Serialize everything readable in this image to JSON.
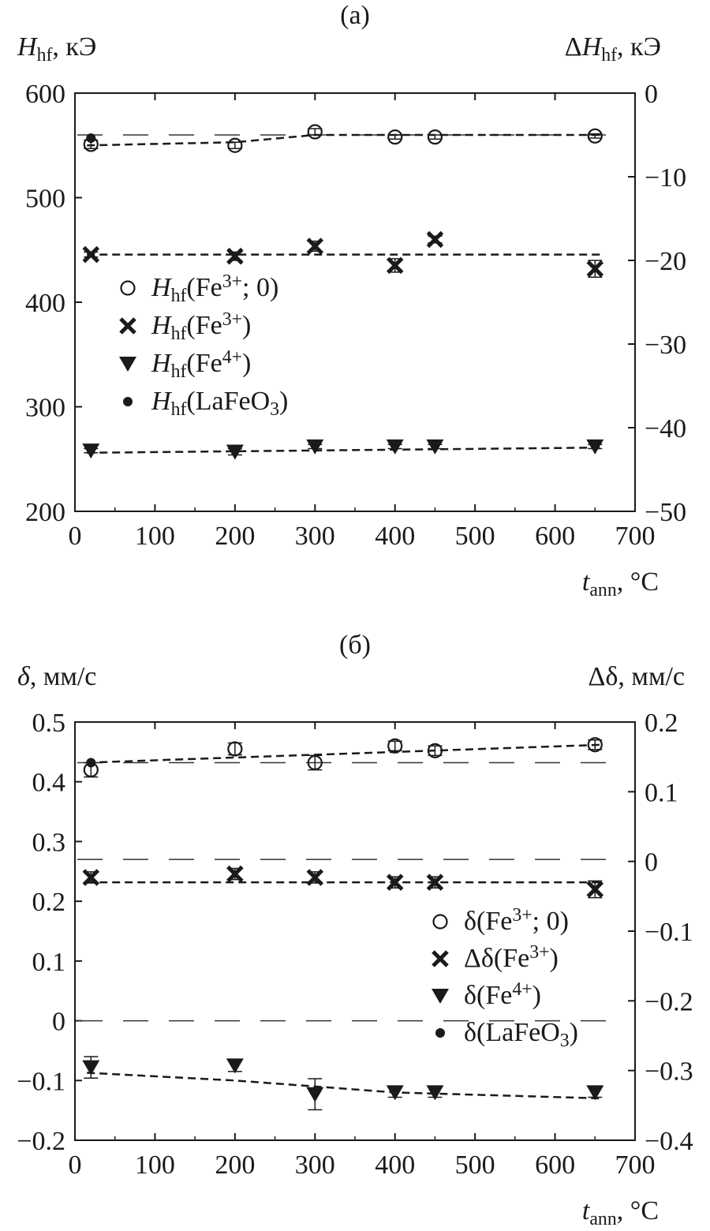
{
  "charts": [
    {
      "panel_label": "(a)",
      "ylabel_left": {
        "main": "H",
        "sub": "hf",
        "tail": ", кЭ"
      },
      "ylabel_right": {
        "prefix": "Δ",
        "main": "H",
        "sub": "hf",
        "tail": ", кЭ"
      },
      "xlabel": {
        "main": "t",
        "sub": "ann",
        "tail": ", °C"
      },
      "xlim": [
        0,
        700
      ],
      "xticks": [
        0,
        100,
        200,
        300,
        400,
        500,
        600,
        700
      ],
      "xtick_labels": [
        "0",
        "100",
        "200",
        "300",
        "400",
        "500",
        "600",
        "700"
      ],
      "ylim_left": [
        200,
        600
      ],
      "yticks_left": [
        200,
        300,
        400,
        500,
        600
      ],
      "ytick_labels_left": [
        "200",
        "300",
        "400",
        "500",
        "600"
      ],
      "ylim_right": [
        -50,
        0
      ],
      "yticks_right": [
        -50,
        -40,
        -30,
        -20,
        -10,
        0
      ],
      "ytick_labels_right": [
        "−50",
        "−40",
        "−30",
        "−20",
        "−10",
        "0"
      ],
      "legend": [
        {
          "marker": "open-circle",
          "segments": [
            {
              "t": "H",
              "style": "italic"
            },
            {
              "t": "hf",
              "style": "sub"
            },
            {
              "t": "(Fe"
            },
            {
              "t": "3+",
              "style": "sup"
            },
            {
              "t": "; 0)"
            }
          ]
        },
        {
          "marker": "cross",
          "segments": [
            {
              "t": "H",
              "style": "italic"
            },
            {
              "t": "hf",
              "style": "sub"
            },
            {
              "t": "(Fe"
            },
            {
              "t": "3+",
              "style": "sup"
            },
            {
              "t": ")"
            }
          ]
        },
        {
          "marker": "down-triangle",
          "segments": [
            {
              "t": "H",
              "style": "italic"
            },
            {
              "t": "hf",
              "style": "sub"
            },
            {
              "t": "(Fe"
            },
            {
              "t": "4+",
              "style": "sup"
            },
            {
              "t": ")"
            }
          ]
        },
        {
          "marker": "filled-circle",
          "segments": [
            {
              "t": "H",
              "style": "italic"
            },
            {
              "t": "hf",
              "style": "sub"
            },
            {
              "t": "(LaFeO"
            },
            {
              "t": "3",
              "style": "sub"
            },
            {
              "t": ")"
            }
          ]
        }
      ]
    },
    {
      "panel_label": "(б)",
      "ylabel_left": {
        "main": "δ",
        "tail": ", мм/с"
      },
      "ylabel_right": {
        "prefix": "Δδ",
        "tail": ", мм/с"
      },
      "xlabel": {
        "main": "t",
        "sub": "ann",
        "tail": ", °C"
      },
      "xlim": [
        0,
        700
      ],
      "xticks": [
        0,
        100,
        200,
        300,
        400,
        500,
        600,
        700
      ],
      "xtick_labels": [
        "0",
        "100",
        "200",
        "300",
        "400",
        "500",
        "600",
        "700"
      ],
      "ylim_left": [
        -0.2,
        0.5
      ],
      "yticks_left": [
        -0.2,
        -0.1,
        0,
        0.1,
        0.2,
        0.3,
        0.4,
        0.5
      ],
      "ytick_labels_left": [
        "−0.2",
        "−0.1",
        "0",
        "0.1",
        "0.2",
        "0.3",
        "0.4",
        "0.5"
      ],
      "ylim_right": [
        -0.4,
        0.2
      ],
      "yticks_right": [
        -0.4,
        -0.3,
        -0.2,
        -0.1,
        0,
        0.1,
        0.2
      ],
      "ytick_labels_right": [
        "−0.4",
        "−0.3",
        "−0.2",
        "−0.1",
        "0",
        "0.1",
        "0.2"
      ],
      "legend": [
        {
          "marker": "open-circle",
          "segments": [
            {
              "t": "δ(Fe"
            },
            {
              "t": "3+",
              "style": "sup"
            },
            {
              "t": "; 0)"
            }
          ]
        },
        {
          "marker": "cross",
          "segments": [
            {
              "t": "Δδ(Fe"
            },
            {
              "t": "3+",
              "style": "sup"
            },
            {
              "t": ")"
            }
          ]
        },
        {
          "marker": "down-triangle",
          "segments": [
            {
              "t": "δ(Fe"
            },
            {
              "t": "4+",
              "style": "sup"
            },
            {
              "t": ")"
            }
          ]
        },
        {
          "marker": "filled-circle",
          "segments": [
            {
              "t": "δ(LaFeO"
            },
            {
              "t": "3",
              "style": "sub"
            },
            {
              "t": ")"
            }
          ]
        }
      ]
    }
  ],
  "chart_data": [
    {
      "type": "scatter",
      "title": "(a)",
      "xlabel": "tann, °C",
      "ylabel": "Hhf, кЭ",
      "ylabel_right": "ΔHhf, кЭ",
      "xlim": [
        0,
        700
      ],
      "ylim": [
        200,
        600
      ],
      "ylim_right": [
        -50,
        0
      ],
      "grid": false,
      "legend_position": "center-left",
      "series": [
        {
          "name": "Hhf(Fe3+; 0)",
          "marker": "open-circle",
          "axis": "left",
          "x": [
            20,
            200,
            300,
            400,
            450,
            650
          ],
          "y": [
            551,
            550,
            563,
            558,
            558,
            559
          ],
          "yerr": [
            4,
            3,
            3,
            2,
            2,
            2
          ]
        },
        {
          "name": "Hhf(Fe3+)",
          "marker": "cross",
          "axis": "right",
          "x": [
            20,
            200,
            300,
            400,
            450,
            650
          ],
          "y": [
            -19.3,
            -19.5,
            -18.3,
            -20.6,
            -17.5,
            -21
          ],
          "yerr": [
            0.3,
            0.5,
            0.6,
            0.8,
            0.4,
            1.0
          ]
        },
        {
          "name": "Hhf(Fe4+)",
          "marker": "down-triangle",
          "axis": "left",
          "x": [
            20,
            200,
            300,
            400,
            450,
            650
          ],
          "y": [
            258,
            257,
            262,
            262,
            262,
            262
          ],
          "yerr": [
            2,
            3,
            2,
            2,
            2,
            2
          ]
        },
        {
          "name": "Hhf(LaFeO3)",
          "marker": "filled-circle",
          "axis": "left",
          "x": [
            20
          ],
          "y": [
            557
          ],
          "yerr": [
            0
          ]
        }
      ],
      "fits": [
        {
          "style": "dashed",
          "axis": "left",
          "x": [
            15,
            200,
            300,
            660
          ],
          "y": [
            550,
            553,
            560,
            560
          ]
        },
        {
          "style": "dashed",
          "axis": "right",
          "x": [
            15,
            660
          ],
          "y": [
            -19.3,
            -19.3
          ]
        },
        {
          "style": "dashed",
          "axis": "left",
          "x": [
            15,
            660
          ],
          "y": [
            256,
            261
          ]
        }
      ],
      "reference_lines": [
        {
          "style": "long-dash",
          "axis": "left",
          "y": 560
        }
      ]
    },
    {
      "type": "scatter",
      "title": "(б)",
      "xlabel": "tann, °C",
      "ylabel": "δ, мм/с",
      "ylabel_right": "Δδ, мм/с",
      "xlim": [
        0,
        700
      ],
      "ylim": [
        -0.2,
        0.5
      ],
      "ylim_right": [
        -0.4,
        0.2
      ],
      "grid": false,
      "legend_position": "center-right",
      "series": [
        {
          "name": "δ(Fe3+; 0)",
          "marker": "open-circle",
          "axis": "left",
          "x": [
            20,
            200,
            300,
            400,
            450,
            650
          ],
          "y": [
            0.42,
            0.455,
            0.432,
            0.46,
            0.452,
            0.462
          ],
          "yerr": [
            0.012,
            0.01,
            0.012,
            0.008,
            0.008,
            0.008
          ]
        },
        {
          "name": "Δδ(Fe3+)",
          "marker": "cross",
          "axis": "right",
          "x": [
            20,
            200,
            300,
            400,
            450,
            650
          ],
          "y": [
            -0.023,
            -0.018,
            -0.023,
            -0.03,
            -0.03,
            -0.04
          ],
          "yerr": [
            0.008,
            0.008,
            0.008,
            0.008,
            0.008,
            0.012
          ]
        },
        {
          "name": "δ(Fe4+)",
          "marker": "down-triangle",
          "axis": "left",
          "x": [
            20,
            200,
            300,
            400,
            450,
            650
          ],
          "y": [
            -0.078,
            -0.075,
            -0.123,
            -0.12,
            -0.12,
            -0.12
          ],
          "yerr": [
            0.018,
            0.01,
            0.026,
            0.008,
            0.008,
            0.008
          ]
        },
        {
          "name": "δ(LaFeO3)",
          "marker": "filled-circle",
          "axis": "left",
          "x": [
            20
          ],
          "y": [
            0.432
          ],
          "yerr": [
            0
          ]
        }
      ],
      "fits": [
        {
          "style": "dashed",
          "axis": "left",
          "x": [
            15,
            660
          ],
          "y": [
            0.432,
            0.462
          ]
        },
        {
          "style": "dashed",
          "axis": "right",
          "x": [
            15,
            660
          ],
          "y": [
            -0.03,
            -0.03
          ]
        },
        {
          "style": "dashed",
          "axis": "left",
          "x": [
            15,
            200,
            400,
            660
          ],
          "y": [
            -0.087,
            -0.1,
            -0.12,
            -0.13
          ]
        }
      ],
      "reference_lines": [
        {
          "style": "long-dash",
          "axis": "left",
          "y": 0.432
        },
        {
          "style": "long-dash",
          "axis": "left",
          "y": 0.27
        },
        {
          "style": "long-dash",
          "axis": "left",
          "y": 0.0
        }
      ]
    }
  ]
}
